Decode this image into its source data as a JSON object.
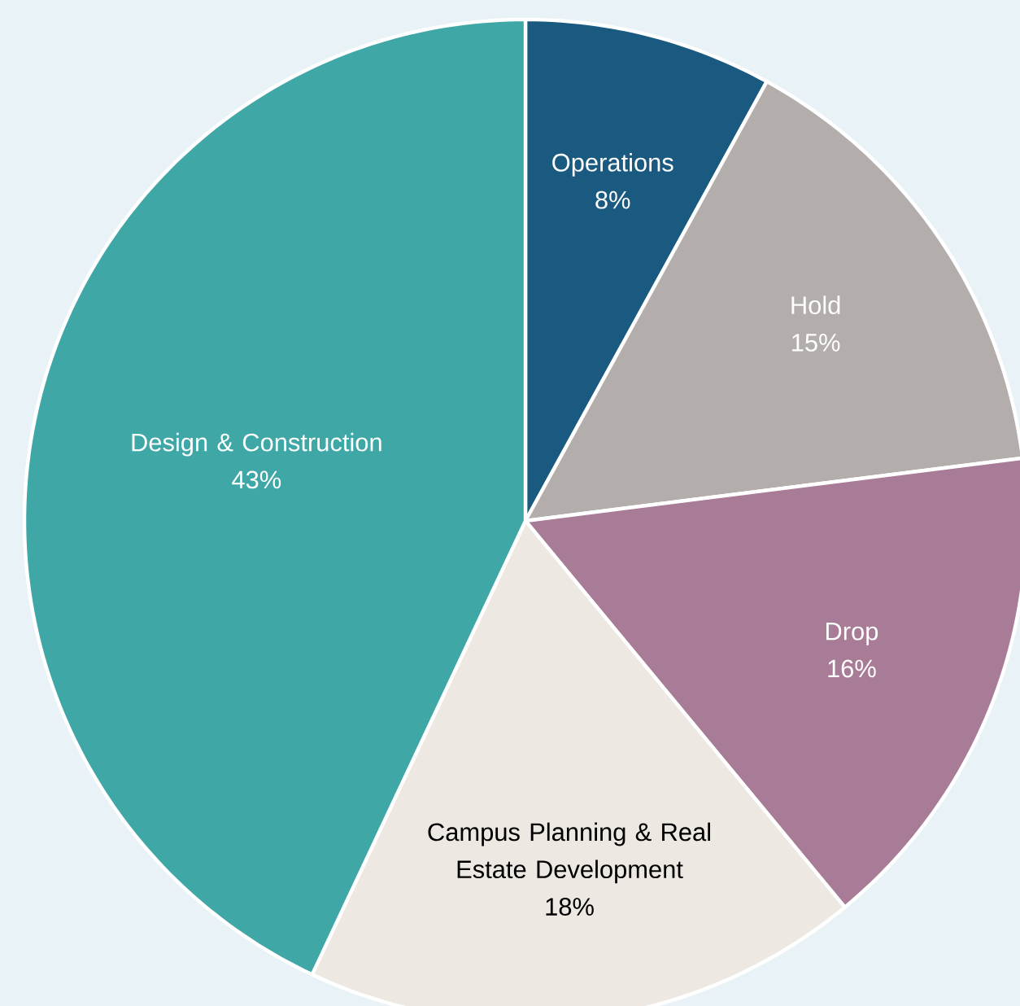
{
  "chart_data": {
    "type": "pie",
    "categories": [
      "Operations",
      "Hold",
      "Drop",
      "Campus Planning & Real Estate Development",
      "Design & Construction"
    ],
    "values": [
      8,
      15,
      16,
      18,
      43
    ],
    "value_labels": [
      "8%",
      "15%",
      "16%",
      "18%",
      "43%"
    ],
    "colors": [
      "#1a5a80",
      "#b3adab",
      "#a87b96",
      "#ede8e2",
      "#3fa7a6"
    ]
  }
}
